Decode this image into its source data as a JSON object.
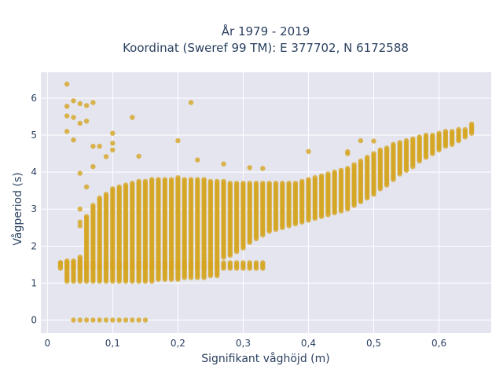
{
  "chart_data": {
    "type": "scatter",
    "title_line1": "År 1979 - 2019",
    "title_line2": "Koordinat (Sweref 99 TM): E 377702, N 6172588",
    "xlabel": "Signifikant våghöjd (m)",
    "ylabel": "Vågperiod (s)",
    "xlim": [
      -0.01,
      0.68
    ],
    "ylim": [
      -0.35,
      6.7
    ],
    "x_ticks": [
      0,
      0.1,
      0.2,
      0.3,
      0.4,
      0.5,
      0.6
    ],
    "x_tick_labels": [
      "0",
      "0,1",
      "0,2",
      "0,3",
      "0,4",
      "0,5",
      "0,6"
    ],
    "y_ticks": [
      0,
      1,
      2,
      3,
      4,
      5,
      6
    ],
    "y_tick_labels": [
      "0",
      "1",
      "2",
      "3",
      "4",
      "5",
      "6"
    ],
    "grid": true,
    "colors": {
      "marker": "#d4a520",
      "plot_bg": "#e5e5f0",
      "grid": "#ffffff",
      "text": "#2a3f5f"
    },
    "series": [
      {
        "columns": [
          {
            "x": 0.03,
            "ymin": 1.05,
            "ymax": 1.6
          },
          {
            "x": 0.04,
            "ymin": 1.05,
            "ymax": 1.6
          },
          {
            "x": 0.05,
            "ymin": 1.05,
            "ymax": 1.7
          },
          {
            "x": 0.06,
            "ymin": 1.05,
            "ymax": 2.8
          },
          {
            "x": 0.07,
            "ymin": 1.05,
            "ymax": 3.1
          },
          {
            "x": 0.08,
            "ymin": 1.05,
            "ymax": 3.3
          },
          {
            "x": 0.09,
            "ymin": 1.05,
            "ymax": 3.4
          },
          {
            "x": 0.1,
            "ymin": 1.05,
            "ymax": 3.55
          },
          {
            "x": 0.11,
            "ymin": 1.05,
            "ymax": 3.6
          },
          {
            "x": 0.12,
            "ymin": 1.05,
            "ymax": 3.65
          },
          {
            "x": 0.13,
            "ymin": 1.05,
            "ymax": 3.7
          },
          {
            "x": 0.14,
            "ymin": 1.05,
            "ymax": 3.75
          },
          {
            "x": 0.15,
            "ymin": 1.05,
            "ymax": 3.75
          },
          {
            "x": 0.16,
            "ymin": 1.05,
            "ymax": 3.8
          },
          {
            "x": 0.17,
            "ymin": 1.1,
            "ymax": 3.8
          },
          {
            "x": 0.18,
            "ymin": 1.1,
            "ymax": 3.8
          },
          {
            "x": 0.19,
            "ymin": 1.1,
            "ymax": 3.8
          },
          {
            "x": 0.2,
            "ymin": 1.1,
            "ymax": 3.85
          },
          {
            "x": 0.21,
            "ymin": 1.15,
            "ymax": 3.8
          },
          {
            "x": 0.22,
            "ymin": 1.15,
            "ymax": 3.8
          },
          {
            "x": 0.23,
            "ymin": 1.15,
            "ymax": 3.8
          },
          {
            "x": 0.24,
            "ymin": 1.15,
            "ymax": 3.8
          },
          {
            "x": 0.25,
            "ymin": 1.2,
            "ymax": 3.75
          },
          {
            "x": 0.26,
            "ymin": 1.2,
            "ymax": 3.75
          },
          {
            "x": 0.27,
            "ymin": 1.7,
            "ymax": 3.75
          },
          {
            "x": 0.28,
            "ymin": 1.75,
            "ymax": 3.7
          },
          {
            "x": 0.29,
            "ymin": 1.85,
            "ymax": 3.7
          },
          {
            "x": 0.3,
            "ymin": 1.95,
            "ymax": 3.7
          },
          {
            "x": 0.31,
            "ymin": 2.1,
            "ymax": 3.7
          },
          {
            "x": 0.32,
            "ymin": 2.2,
            "ymax": 3.7
          },
          {
            "x": 0.33,
            "ymin": 2.3,
            "ymax": 3.7
          },
          {
            "x": 0.34,
            "ymin": 2.4,
            "ymax": 3.7
          },
          {
            "x": 0.35,
            "ymin": 2.45,
            "ymax": 3.7
          },
          {
            "x": 0.36,
            "ymin": 2.5,
            "ymax": 3.7
          },
          {
            "x": 0.37,
            "ymin": 2.55,
            "ymax": 3.7
          },
          {
            "x": 0.38,
            "ymin": 2.6,
            "ymax": 3.7
          },
          {
            "x": 0.39,
            "ymin": 2.65,
            "ymax": 3.75
          },
          {
            "x": 0.4,
            "ymin": 2.7,
            "ymax": 3.8
          },
          {
            "x": 0.41,
            "ymin": 2.75,
            "ymax": 3.85
          },
          {
            "x": 0.42,
            "ymin": 2.8,
            "ymax": 3.9
          },
          {
            "x": 0.43,
            "ymin": 2.85,
            "ymax": 3.95
          },
          {
            "x": 0.44,
            "ymin": 2.9,
            "ymax": 4.0
          },
          {
            "x": 0.45,
            "ymin": 2.95,
            "ymax": 4.05
          },
          {
            "x": 0.46,
            "ymin": 3.0,
            "ymax": 4.1
          },
          {
            "x": 0.47,
            "ymin": 3.1,
            "ymax": 4.2
          },
          {
            "x": 0.48,
            "ymin": 3.2,
            "ymax": 4.3
          },
          {
            "x": 0.49,
            "ymin": 3.3,
            "ymax": 4.4
          },
          {
            "x": 0.5,
            "ymin": 3.4,
            "ymax": 4.5
          },
          {
            "x": 0.51,
            "ymin": 3.55,
            "ymax": 4.6
          },
          {
            "x": 0.52,
            "ymin": 3.65,
            "ymax": 4.65
          },
          {
            "x": 0.53,
            "ymin": 3.8,
            "ymax": 4.75
          },
          {
            "x": 0.54,
            "ymin": 3.95,
            "ymax": 4.8
          },
          {
            "x": 0.55,
            "ymin": 4.05,
            "ymax": 4.85
          },
          {
            "x": 0.56,
            "ymin": 4.15,
            "ymax": 4.9
          },
          {
            "x": 0.57,
            "ymin": 4.3,
            "ymax": 4.95
          },
          {
            "x": 0.58,
            "ymin": 4.4,
            "ymax": 5.0
          },
          {
            "x": 0.59,
            "ymin": 4.5,
            "ymax": 5.0
          },
          {
            "x": 0.6,
            "ymin": 4.6,
            "ymax": 5.05
          },
          {
            "x": 0.61,
            "ymin": 4.7,
            "ymax": 5.1
          },
          {
            "x": 0.62,
            "ymin": 4.75,
            "ymax": 5.1
          },
          {
            "x": 0.63,
            "ymin": 4.85,
            "ymax": 5.15
          },
          {
            "x": 0.64,
            "ymin": 4.95,
            "ymax": 5.15
          },
          {
            "x": 0.65,
            "ymin": 5.05,
            "ymax": 5.3
          }
        ],
        "band_1_5": {
          "x_from": 0.02,
          "x_to": 0.33,
          "ymin": 1.4,
          "ymax": 1.55
        },
        "zero_row": {
          "x": [
            0.04,
            0.05,
            0.06,
            0.07,
            0.08,
            0.09,
            0.1,
            0.11,
            0.12,
            0.13,
            0.14,
            0.15
          ],
          "y": 0
        },
        "outliers": [
          [
            0.03,
            6.38
          ],
          [
            0.03,
            5.78
          ],
          [
            0.04,
            5.93
          ],
          [
            0.05,
            5.85
          ],
          [
            0.06,
            5.8
          ],
          [
            0.07,
            5.88
          ],
          [
            0.03,
            5.52
          ],
          [
            0.04,
            5.48
          ],
          [
            0.05,
            5.32
          ],
          [
            0.06,
            5.38
          ],
          [
            0.03,
            5.1
          ],
          [
            0.04,
            4.87
          ],
          [
            0.05,
            3.97
          ],
          [
            0.07,
            4.7
          ],
          [
            0.08,
            4.7
          ],
          [
            0.07,
            4.15
          ],
          [
            0.09,
            4.42
          ],
          [
            0.1,
            5.05
          ],
          [
            0.1,
            4.78
          ],
          [
            0.1,
            4.6
          ],
          [
            0.13,
            5.48
          ],
          [
            0.14,
            4.43
          ],
          [
            0.2,
            4.85
          ],
          [
            0.22,
            5.88
          ],
          [
            0.23,
            4.33
          ],
          [
            0.27,
            4.22
          ],
          [
            0.31,
            4.12
          ],
          [
            0.33,
            4.1
          ],
          [
            0.4,
            4.56
          ],
          [
            0.46,
            4.5
          ],
          [
            0.46,
            4.55
          ],
          [
            0.48,
            4.85
          ],
          [
            0.5,
            4.84
          ],
          [
            0.06,
            3.6
          ],
          [
            0.05,
            2.55
          ],
          [
            0.05,
            2.65
          ],
          [
            0.05,
            3.0
          ],
          [
            0.02,
            1.55
          ]
        ]
      }
    ]
  }
}
